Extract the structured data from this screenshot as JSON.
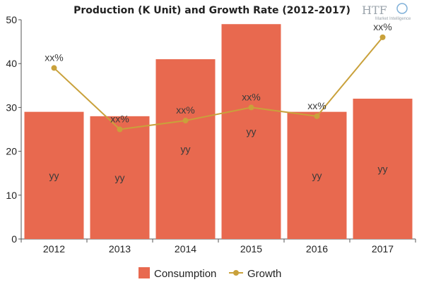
{
  "chart_data": {
    "type": "bar",
    "title": "Production (K Unit) and Growth Rate (2012-2017)",
    "categories": [
      "2012",
      "2013",
      "2014",
      "2015",
      "2016",
      "2017"
    ],
    "ylim": [
      0,
      50
    ],
    "yticks": [
      0,
      10,
      20,
      30,
      40,
      50
    ],
    "grid": false,
    "legend": "bottom",
    "series": [
      {
        "name": "Consumption",
        "type": "bar",
        "color": "#e8694f",
        "values": [
          29,
          28,
          41,
          49,
          29,
          32
        ],
        "labels": [
          "yy",
          "yy",
          "yy",
          "yy",
          "yy",
          "yy"
        ]
      },
      {
        "name": "Growth",
        "type": "line",
        "color": "#c9a13b",
        "values": [
          39,
          25,
          27,
          30,
          28,
          46
        ],
        "labels": [
          "xx%",
          "xx%",
          "xx%",
          "xx%",
          "xx%",
          "xx%"
        ]
      }
    ]
  },
  "logo": {
    "text": "HTF",
    "subtext": "Market Intelligence"
  }
}
